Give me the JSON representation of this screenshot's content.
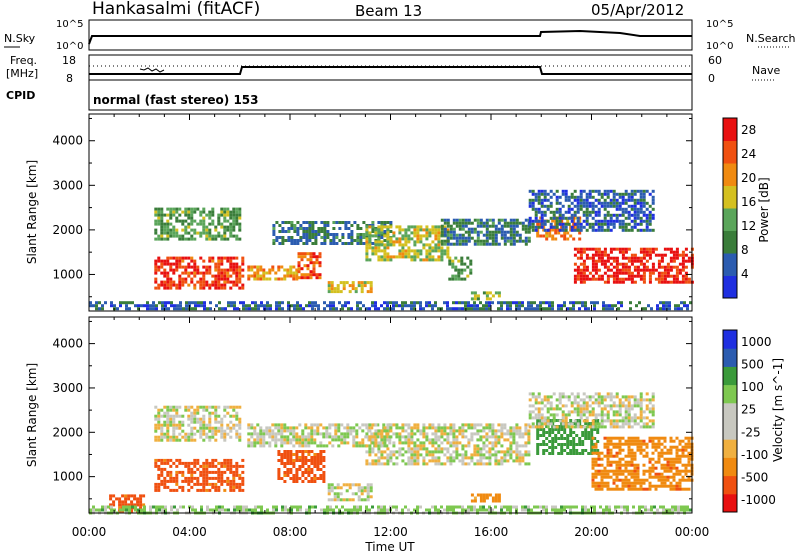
{
  "header": {
    "station": "Hankasalmi (fitACF)",
    "beam": "Beam 13",
    "date": "05/Apr/2012"
  },
  "noise_panel": {
    "left_label": "N.Sky",
    "left_ticks": [
      "10^5",
      "10^0"
    ],
    "right_label": "N.Search",
    "right_ticks": [
      "10^5",
      "10^0"
    ]
  },
  "freq_panel": {
    "left_label_line1": "Freq.",
    "left_label_line2": "[MHz]",
    "left_ticks": [
      "18",
      "8"
    ],
    "right_label": "Nave",
    "right_ticks": [
      "60",
      "0"
    ]
  },
  "cpid_panel": {
    "label": "CPID",
    "text": "normal (fast stereo) 153"
  },
  "colors": {
    "power_scale": [
      "#1f2fe0",
      "#2b5cb0",
      "#3a7d3a",
      "#5aa55a",
      "#d4c020",
      "#f08a10",
      "#f05010",
      "#e81010"
    ],
    "velocity_scale": [
      "#e81010",
      "#f05010",
      "#f08a10",
      "#f0b040",
      "#c8c8c0",
      "#c8c8c0",
      "#7ec850",
      "#3a9a3a",
      "#2b5cb0",
      "#1f2fe0"
    ]
  },
  "chart_data": [
    {
      "type": "heatmap",
      "panel": "power",
      "xlabel": "Time UT",
      "ylabel": "Slant Range [km]",
      "xlim": [
        0,
        24
      ],
      "ylim": [
        180,
        4600
      ],
      "xticks": [
        "00:00",
        "04:00",
        "08:00",
        "12:00",
        "16:00",
        "20:00",
        "00:00"
      ],
      "yticks": [
        1000,
        2000,
        3000,
        4000
      ],
      "colorbar_label": "Power [dB]",
      "colorbar_ticks": [
        4,
        8,
        12,
        16,
        20,
        24,
        28
      ],
      "colorbar_range": [
        0,
        30
      ],
      "regions": [
        {
          "t0": 2.6,
          "t1": 6.0,
          "r0": 1800,
          "r1": 2500,
          "level": 12
        },
        {
          "t0": 2.6,
          "t1": 6.1,
          "r0": 700,
          "r1": 1400,
          "level": 26
        },
        {
          "t0": 6.3,
          "t1": 8.3,
          "r0": 900,
          "r1": 1200,
          "level": 20
        },
        {
          "t0": 7.3,
          "t1": 12.0,
          "r0": 1700,
          "r1": 2200,
          "level": 8
        },
        {
          "t0": 8.3,
          "t1": 9.2,
          "r0": 950,
          "r1": 1500,
          "level": 24
        },
        {
          "t0": 9.5,
          "t1": 11.2,
          "r0": 600,
          "r1": 850,
          "level": 18
        },
        {
          "t0": 11.0,
          "t1": 14.3,
          "r0": 1300,
          "r1": 2100,
          "level": 16
        },
        {
          "t0": 14.0,
          "t1": 17.5,
          "r0": 1650,
          "r1": 2250,
          "level": 8
        },
        {
          "t0": 14.3,
          "t1": 15.2,
          "r0": 900,
          "r1": 1400,
          "level": 12
        },
        {
          "t0": 15.2,
          "t1": 16.3,
          "r0": 450,
          "r1": 620,
          "level": 14
        },
        {
          "t0": 17.8,
          "t1": 19.5,
          "r0": 1800,
          "r1": 2300,
          "level": 22
        },
        {
          "t0": 19.3,
          "t1": 24.0,
          "r0": 800,
          "r1": 1600,
          "level": 28
        },
        {
          "t0": 17.5,
          "t1": 22.5,
          "r0": 2000,
          "r1": 2900,
          "level": 6
        },
        {
          "t0": 0.0,
          "t1": 24.0,
          "r0": 200,
          "r1": 400,
          "level": 6
        }
      ]
    },
    {
      "type": "heatmap",
      "panel": "velocity",
      "xlabel": "Time UT",
      "ylabel": "Slant Range [km]",
      "xlim": [
        0,
        24
      ],
      "ylim": [
        180,
        4600
      ],
      "xticks": [
        "00:00",
        "04:00",
        "08:00",
        "12:00",
        "16:00",
        "20:00",
        "00:00"
      ],
      "yticks": [
        1000,
        2000,
        3000,
        4000
      ],
      "colorbar_label": "Velocity [m s^-1]",
      "colorbar_ticks": [
        "1000",
        "500",
        "100",
        "25",
        "-25",
        "-100",
        "-500",
        "-1000"
      ],
      "regions": [
        {
          "t0": 2.6,
          "t1": 6.0,
          "r0": 1800,
          "r1": 2600,
          "level": 0
        },
        {
          "t0": 2.6,
          "t1": 6.1,
          "r0": 700,
          "r1": 1400,
          "level": -300
        },
        {
          "t0": 0.8,
          "t1": 2.2,
          "r0": 250,
          "r1": 600,
          "level": -300
        },
        {
          "t0": 6.3,
          "t1": 12.0,
          "r0": 1700,
          "r1": 2200,
          "level": 0
        },
        {
          "t0": 7.5,
          "t1": 9.3,
          "r0": 900,
          "r1": 1600,
          "level": -300
        },
        {
          "t0": 9.5,
          "t1": 11.2,
          "r0": 500,
          "r1": 850,
          "level": 0
        },
        {
          "t0": 11.0,
          "t1": 17.5,
          "r0": 1300,
          "r1": 2200,
          "level": 0
        },
        {
          "t0": 15.2,
          "t1": 16.3,
          "r0": 450,
          "r1": 620,
          "level": -150
        },
        {
          "t0": 17.8,
          "t1": 20.2,
          "r0": 1500,
          "r1": 2300,
          "level": 200
        },
        {
          "t0": 20.0,
          "t1": 24.0,
          "r0": 700,
          "r1": 1900,
          "level": -200
        },
        {
          "t0": 17.5,
          "t1": 22.5,
          "r0": 2100,
          "r1": 2900,
          "level": 0
        },
        {
          "t0": 0.0,
          "t1": 24.0,
          "r0": 200,
          "r1": 350,
          "level": 50
        }
      ]
    }
  ]
}
